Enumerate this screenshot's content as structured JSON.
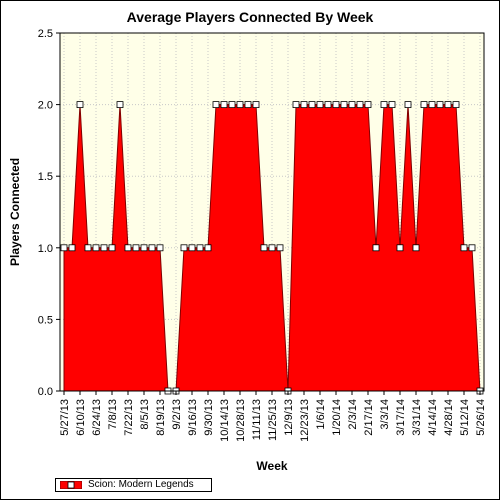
{
  "chart_data": {
    "type": "area",
    "title": "Average Players Connected By Week",
    "xlabel": "Week",
    "ylabel": "Players Connected",
    "ylim": [
      0,
      2.5
    ],
    "yticks": [
      "0.0",
      "0.5",
      "1.0",
      "1.5",
      "2.0",
      "2.5"
    ],
    "x_tick_labels": [
      "5/27/13",
      "6/10/13",
      "6/24/13",
      "7/8/13",
      "7/22/13",
      "8/5/13",
      "8/19/13",
      "9/2/13",
      "9/16/13",
      "9/30/13",
      "10/14/13",
      "10/28/13",
      "11/11/13",
      "11/25/13",
      "12/9/13",
      "12/23/13",
      "1/6/14",
      "1/20/14",
      "2/3/14",
      "2/17/14",
      "3/3/14",
      "3/17/14",
      "3/31/14",
      "4/14/14",
      "4/28/14",
      "5/12/14",
      "5/26/14"
    ],
    "grid": true,
    "legend_position": "bottom-left",
    "series": [
      {
        "name": "Scion: Modern Legends",
        "color": "#ff0000",
        "x": [
          "5/27/13",
          "6/3/13",
          "6/10/13",
          "6/17/13",
          "6/24/13",
          "7/1/13",
          "7/8/13",
          "7/15/13",
          "7/22/13",
          "7/29/13",
          "8/5/13",
          "8/12/13",
          "8/19/13",
          "8/26/13",
          "9/2/13",
          "9/9/13",
          "9/16/13",
          "9/23/13",
          "9/30/13",
          "10/7/13",
          "10/14/13",
          "10/21/13",
          "10/28/13",
          "11/4/13",
          "11/11/13",
          "11/18/13",
          "11/25/13",
          "12/2/13",
          "12/9/13",
          "12/16/13",
          "12/23/13",
          "12/30/13",
          "1/6/14",
          "1/13/14",
          "1/20/14",
          "1/27/14",
          "2/3/14",
          "2/10/14",
          "2/17/14",
          "2/24/14",
          "3/3/14",
          "3/10/14",
          "3/17/14",
          "3/24/14",
          "3/31/14",
          "4/7/14",
          "4/14/14",
          "4/21/14",
          "4/28/14",
          "5/5/14",
          "5/12/14",
          "5/19/14",
          "5/26/14"
        ],
        "values": [
          1,
          1,
          2,
          1,
          1,
          1,
          1,
          2,
          1,
          1,
          1,
          1,
          1,
          0,
          0,
          1,
          1,
          1,
          1,
          2,
          2,
          2,
          2,
          2,
          2,
          1,
          1,
          1,
          0,
          2,
          2,
          2,
          2,
          2,
          2,
          2,
          2,
          2,
          2,
          1,
          2,
          2,
          1,
          2,
          1,
          2,
          2,
          2,
          2,
          2,
          1,
          1,
          0
        ]
      }
    ]
  }
}
